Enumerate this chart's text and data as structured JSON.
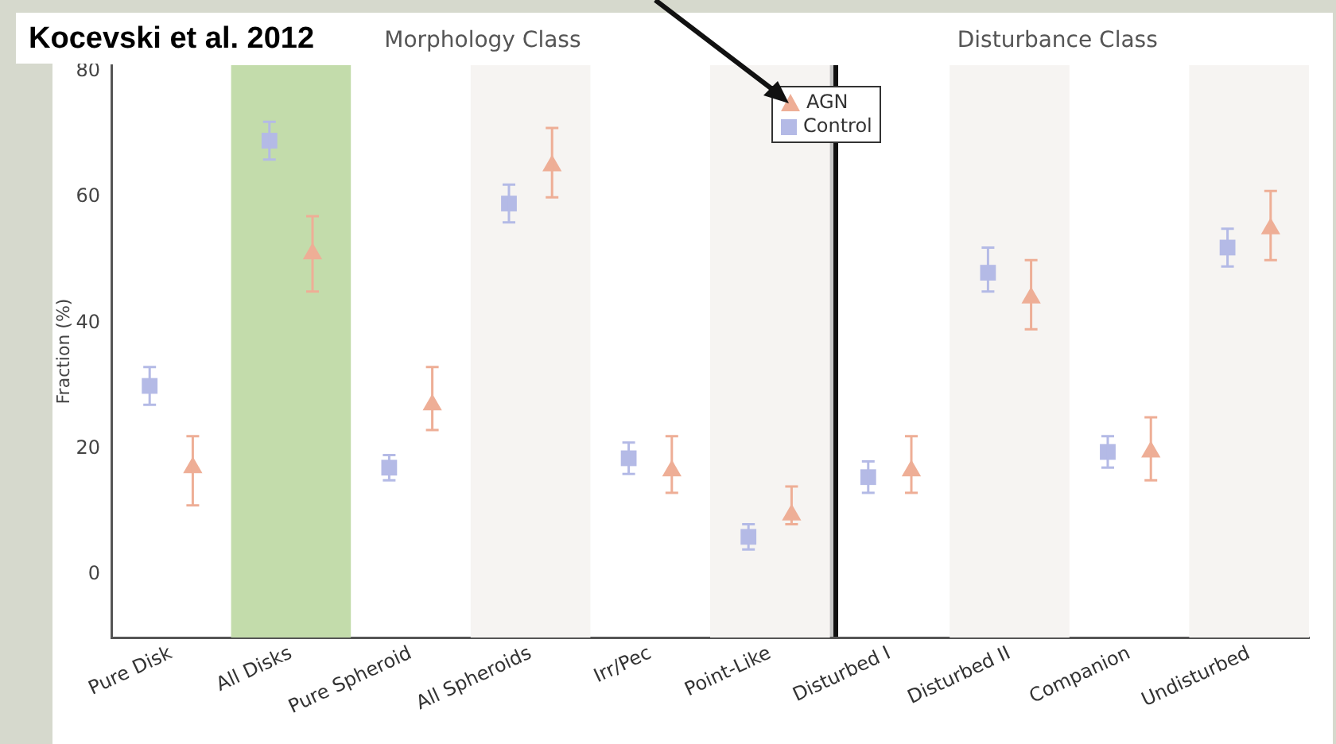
{
  "chart_data": {
    "type": "scatter",
    "title": "Kocevski et al. 2012",
    "ylabel": "Fraction (%)",
    "categories": [
      "Pure Disk",
      "All Disks",
      "Pure Spheroid",
      "All Spheroids",
      "Irr/Pec",
      "Point-Like",
      "Disturbed I",
      "Disturbed II",
      "Companion",
      "Undisturbed"
    ],
    "series": [
      {
        "name": "AGN",
        "color": "#eeae96",
        "marker": "triangle",
        "values": [
          17,
          51,
          27,
          65,
          16.5,
          9.5,
          16.5,
          44,
          19.5,
          55
        ],
        "errors": [
          [
            11,
            22
          ],
          [
            45,
            57
          ],
          [
            23,
            33
          ],
          [
            60,
            71
          ],
          [
            13,
            22
          ],
          [
            8,
            14
          ],
          [
            13,
            22
          ],
          [
            39,
            50
          ],
          [
            15,
            25
          ],
          [
            50,
            61
          ]
        ]
      },
      {
        "name": "Control",
        "color": "#b4bae6",
        "marker": "square",
        "values": [
          30,
          69,
          17,
          59,
          18.5,
          6,
          15.5,
          48,
          19.5,
          52
        ],
        "errors": [
          [
            27,
            33
          ],
          [
            66,
            72
          ],
          [
            15,
            19
          ],
          [
            56,
            62
          ],
          [
            16,
            21
          ],
          [
            4,
            8
          ],
          [
            13,
            18
          ],
          [
            45,
            52
          ],
          [
            17,
            22
          ],
          [
            49,
            55
          ]
        ]
      }
    ],
    "ylim": [
      -10,
      81
    ],
    "yticks": [
      0,
      20,
      40,
      60,
      80
    ],
    "grid": false,
    "legend": "top",
    "bands": [
      {
        "axis": "x",
        "from": "All Disks",
        "to": "All Disks",
        "color": "#c3dcab"
      },
      {
        "axis": "x",
        "from": "All Spheroids",
        "to": "All Spheroids",
        "color": "#f6f4f2"
      },
      {
        "axis": "x",
        "from": "Point-Like",
        "to": "Point-Like",
        "color": "#f6f4f2"
      },
      {
        "axis": "x",
        "from": "Disturbed II",
        "to": "Disturbed II",
        "color": "#f6f4f2"
      },
      {
        "axis": "x",
        "from": "Undisturbed",
        "to": "Undisturbed",
        "color": "#f6f4f2"
      }
    ],
    "annotations": [
      "Morphology Class",
      "Disturbance Class"
    ]
  }
}
